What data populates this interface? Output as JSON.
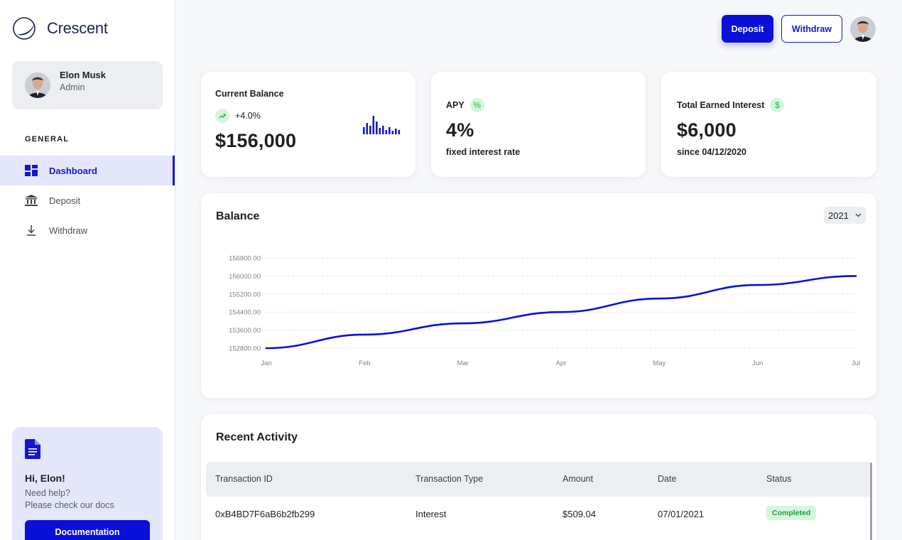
{
  "brand": {
    "name": "Crescent"
  },
  "profile": {
    "name": "Elon Musk",
    "role": "Admin"
  },
  "nav": {
    "heading": "GENERAL",
    "items": [
      {
        "label": "Dashboard",
        "icon": "dashboard-grid-icon",
        "active": true
      },
      {
        "label": "Deposit",
        "icon": "bank-icon",
        "active": false
      },
      {
        "label": "Withdraw",
        "icon": "download-arrow-icon",
        "active": false
      }
    ]
  },
  "help": {
    "title": "Hi, Elon!",
    "line1": "Need help?",
    "line2": "Please check our docs",
    "button": "Documentation"
  },
  "topbar": {
    "deposit_label": "Deposit",
    "withdraw_label": "Withdraw"
  },
  "stats": {
    "balance": {
      "label": "Current Balance",
      "change": "+4.0%",
      "value": "$156,000"
    },
    "apy": {
      "label": "APY",
      "badge": "%",
      "value": "4%",
      "sub": "fixed interest rate"
    },
    "interest": {
      "label": "Total Earned Interest",
      "badge": "$",
      "value": "$6,000",
      "sub": "since 04/12/2020"
    }
  },
  "balance_chart": {
    "title": "Balance",
    "year": "2021"
  },
  "chart_data": {
    "type": "line",
    "title": "Balance",
    "categories": [
      "Jan",
      "Feb",
      "Mar",
      "Apr",
      "May",
      "Jun",
      "Jul"
    ],
    "series": [
      {
        "name": "Balance",
        "values": [
          152800,
          153400,
          153900,
          154400,
          155000,
          155600,
          156000
        ]
      }
    ],
    "y_ticks": [
      "156800.00",
      "156000.00",
      "155200.00",
      "154400.00",
      "153600.00",
      "152800.00"
    ],
    "ylim": [
      152800,
      156800
    ],
    "grid": true,
    "color": "#0a10d8"
  },
  "activity": {
    "title": "Recent Activity",
    "columns": [
      "Transaction ID",
      "Transaction Type",
      "Amount",
      "Date",
      "Status"
    ],
    "rows": [
      {
        "id": "0xB4BD7F6aB6b2fb299",
        "type": "Interest",
        "amount": "$509.04",
        "date": "07/01/2021",
        "status": "Completed"
      }
    ]
  },
  "colors": {
    "accent": "#0a10d8",
    "accent_soft": "#e4e6fb",
    "success": "#22b24c",
    "success_bg": "#d4f6dc"
  }
}
